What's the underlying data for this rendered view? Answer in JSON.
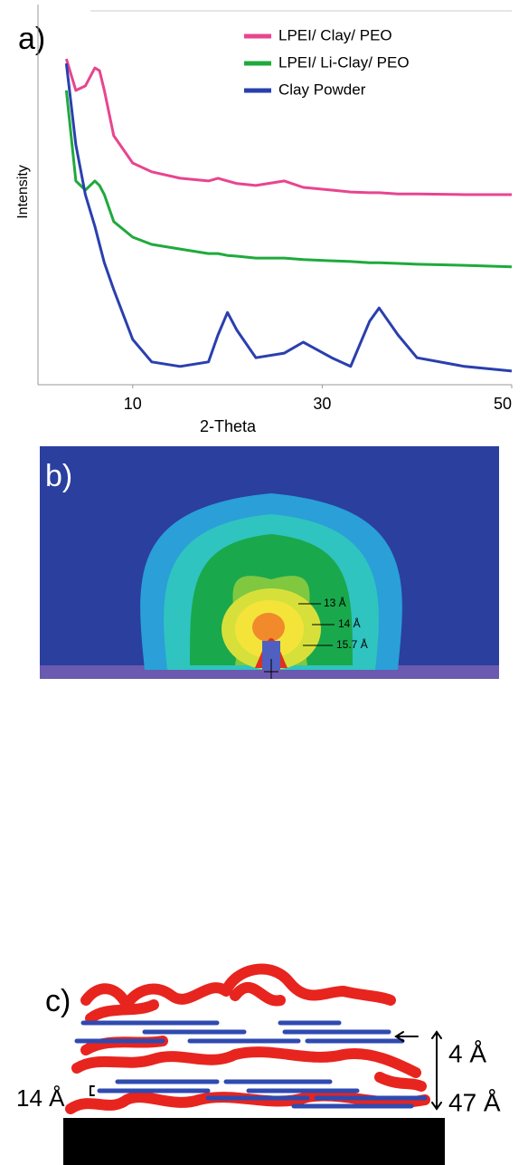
{
  "chart_data": {
    "type": "line",
    "panel_label": "a)",
    "x_label": "2-Theta",
    "y_label": "Intensity",
    "xlim": [
      0,
      50
    ],
    "xticks": [
      10,
      30,
      50
    ],
    "ylim": [
      0,
      100
    ],
    "legend": "upper right",
    "x": [
      3,
      4,
      5,
      6,
      6.5,
      7,
      8,
      10,
      12,
      15,
      18,
      19,
      20,
      21,
      23,
      26,
      28,
      31,
      33,
      35,
      36,
      38,
      40,
      45,
      50
    ],
    "series": [
      {
        "name": "LPEI/ Clay/ PEO",
        "color": "#e8458f",
        "values": [
          85.7,
          77.4,
          78.6,
          83.3,
          82.6,
          77.4,
          65.5,
          58.3,
          56.0,
          54.3,
          53.6,
          54.3,
          53.6,
          52.9,
          52.4,
          53.6,
          51.9,
          51.2,
          50.7,
          50.5,
          50.5,
          50.2,
          50.2,
          50,
          50
        ]
      },
      {
        "name": "LPEI/ Li-Clay/ PEO",
        "color": "#1faa3c",
        "values": [
          77.4,
          53.6,
          51.2,
          53.6,
          52.4,
          50,
          42.9,
          38.8,
          36.9,
          35.7,
          34.5,
          34.5,
          34.0,
          33.8,
          33.3,
          33.3,
          32.9,
          32.6,
          32.4,
          32.1,
          32.1,
          31.9,
          31.7,
          31.4,
          31.0
        ]
      },
      {
        "name": "Clay Powder",
        "color": "#2a3fae",
        "values": [
          84.5,
          63.1,
          50,
          41.7,
          36.9,
          32.1,
          25,
          11.9,
          6,
          4.8,
          6,
          13.1,
          19,
          14.3,
          7.1,
          8.3,
          11.2,
          7.1,
          4.8,
          16.7,
          20.2,
          13.1,
          7.1,
          4.8,
          3.6
        ]
      }
    ]
  },
  "panel_b": {
    "label": "b)",
    "annotations": [
      "13 Å",
      "14 Å",
      "15.7 Å"
    ]
  },
  "panel_c": {
    "label": "c)",
    "annotations": [
      "4 Å",
      "14 Å",
      "47 Å"
    ]
  }
}
